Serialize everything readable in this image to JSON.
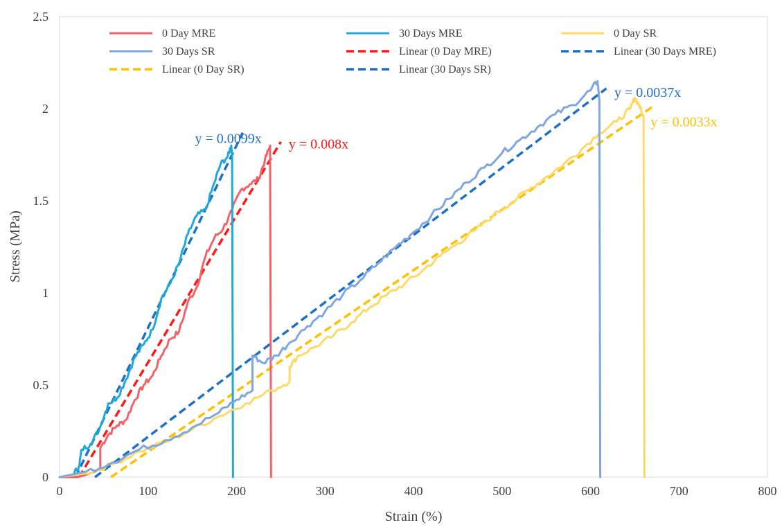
{
  "chart_data": {
    "type": "line",
    "title": "",
    "xlabel": "Strain (%)",
    "ylabel": "Stress (MPa)",
    "xlim": [
      0,
      800
    ],
    "ylim": [
      0,
      2.5
    ],
    "x_ticks": [
      "0",
      "100",
      "200",
      "300",
      "400",
      "500",
      "600",
      "700",
      "800"
    ],
    "y_ticks": [
      "0",
      "0.5",
      "1",
      "1.5",
      "2",
      "2.5"
    ],
    "grid": false,
    "legend_position": "top",
    "series": [
      {
        "name": "0 Day MRE",
        "style": "solid",
        "color": "#f0636a",
        "points": [
          [
            0,
            0
          ],
          [
            20,
            0
          ],
          [
            28,
            0.01
          ],
          [
            40,
            0.03
          ],
          [
            46,
            0.05
          ],
          [
            46,
            0.16
          ],
          [
            55,
            0.23
          ],
          [
            65,
            0.28
          ],
          [
            75,
            0.31
          ],
          [
            85,
            0.42
          ],
          [
            95,
            0.5
          ],
          [
            105,
            0.55
          ],
          [
            115,
            0.66
          ],
          [
            125,
            0.75
          ],
          [
            135,
            0.79
          ],
          [
            145,
            0.95
          ],
          [
            155,
            1.03
          ],
          [
            165,
            1.2
          ],
          [
            175,
            1.3
          ],
          [
            185,
            1.35
          ],
          [
            195,
            1.45
          ],
          [
            205,
            1.56
          ],
          [
            215,
            1.59
          ],
          [
            225,
            1.62
          ],
          [
            232,
            1.72
          ],
          [
            238,
            1.8
          ],
          [
            238,
            1.72
          ],
          [
            239,
            0
          ]
        ]
      },
      {
        "name": "30 Days MRE",
        "style": "solid",
        "color": "#1fa9d6",
        "points": [
          [
            0,
            0
          ],
          [
            15,
            0.01
          ],
          [
            22,
            0.06
          ],
          [
            25,
            0.15
          ],
          [
            35,
            0.18
          ],
          [
            45,
            0.26
          ],
          [
            55,
            0.4
          ],
          [
            65,
            0.43
          ],
          [
            75,
            0.53
          ],
          [
            85,
            0.65
          ],
          [
            95,
            0.72
          ],
          [
            105,
            0.8
          ],
          [
            115,
            0.97
          ],
          [
            125,
            1.05
          ],
          [
            135,
            1.16
          ],
          [
            145,
            1.32
          ],
          [
            155,
            1.42
          ],
          [
            165,
            1.45
          ],
          [
            175,
            1.6
          ],
          [
            182,
            1.7
          ],
          [
            190,
            1.74
          ],
          [
            194,
            1.8
          ],
          [
            195,
            1.75
          ],
          [
            196,
            0
          ]
        ]
      },
      {
        "name": "0 Day SR",
        "style": "solid",
        "color": "#ffd966",
        "points": [
          [
            0,
            0
          ],
          [
            30,
            0.02
          ],
          [
            60,
            0.07
          ],
          [
            90,
            0.14
          ],
          [
            120,
            0.19
          ],
          [
            150,
            0.26
          ],
          [
            180,
            0.33
          ],
          [
            210,
            0.4
          ],
          [
            240,
            0.47
          ],
          [
            260,
            0.52
          ],
          [
            260,
            0.6
          ],
          [
            270,
            0.66
          ],
          [
            290,
            0.71
          ],
          [
            310,
            0.77
          ],
          [
            330,
            0.84
          ],
          [
            350,
            0.92
          ],
          [
            370,
            0.99
          ],
          [
            390,
            1.05
          ],
          [
            410,
            1.12
          ],
          [
            430,
            1.2
          ],
          [
            450,
            1.27
          ],
          [
            470,
            1.34
          ],
          [
            490,
            1.42
          ],
          [
            510,
            1.49
          ],
          [
            530,
            1.56
          ],
          [
            550,
            1.63
          ],
          [
            570,
            1.7
          ],
          [
            590,
            1.78
          ],
          [
            610,
            1.87
          ],
          [
            630,
            1.93
          ],
          [
            645,
            2.0
          ],
          [
            650,
            2.06
          ],
          [
            655,
            2.02
          ],
          [
            660,
            1.95
          ],
          [
            661,
            0
          ]
        ]
      },
      {
        "name": "30 Days SR",
        "style": "solid",
        "color": "#7fa7dd",
        "points": [
          [
            0,
            0
          ],
          [
            30,
            0.03
          ],
          [
            60,
            0.08
          ],
          [
            90,
            0.15
          ],
          [
            120,
            0.2
          ],
          [
            150,
            0.27
          ],
          [
            180,
            0.35
          ],
          [
            200,
            0.42
          ],
          [
            218,
            0.47
          ],
          [
            218,
            0.66
          ],
          [
            230,
            0.62
          ],
          [
            245,
            0.66
          ],
          [
            260,
            0.73
          ],
          [
            280,
            0.82
          ],
          [
            300,
            0.9
          ],
          [
            320,
            0.99
          ],
          [
            340,
            1.07
          ],
          [
            360,
            1.16
          ],
          [
            380,
            1.25
          ],
          [
            400,
            1.33
          ],
          [
            420,
            1.42
          ],
          [
            440,
            1.51
          ],
          [
            460,
            1.6
          ],
          [
            480,
            1.68
          ],
          [
            500,
            1.76
          ],
          [
            520,
            1.83
          ],
          [
            540,
            1.9
          ],
          [
            560,
            1.97
          ],
          [
            580,
            2.02
          ],
          [
            600,
            2.1
          ],
          [
            608,
            2.15
          ],
          [
            610,
            2.05
          ],
          [
            611,
            0
          ]
        ]
      },
      {
        "name": "Linear (0 Day MRE)",
        "style": "dashed",
        "color": "#ff1a1a",
        "points": [
          [
            22,
            0
          ],
          [
            250,
            1.82
          ]
        ]
      },
      {
        "name": "Linear (30 Days MRE)",
        "style": "dashed",
        "color": "#1f6fc2",
        "points": [
          [
            18,
            0
          ],
          [
            207,
            1.87
          ]
        ]
      },
      {
        "name": "Linear (0 Day SR)",
        "style": "dashed",
        "color": "#ffc000",
        "points": [
          [
            58,
            0
          ],
          [
            670,
            2.01
          ]
        ]
      },
      {
        "name": "Linear (30 Days SR)",
        "style": "dashed",
        "color": "#1f6fc2",
        "points": [
          [
            40,
            0
          ],
          [
            618,
            2.11
          ]
        ]
      }
    ],
    "annotations": [
      {
        "text": "y = 0.0099x",
        "x": 153,
        "y": 1.84,
        "color": "#1f6fc2"
      },
      {
        "text": "y = 0.008x",
        "x": 259,
        "y": 1.81,
        "color": "#ff1a1a"
      },
      {
        "text": "y = 0.0037x",
        "x": 627,
        "y": 2.09,
        "color": "#1f6fc2"
      },
      {
        "text": "y = 0.0033x",
        "x": 668,
        "y": 1.93,
        "color": "#ffc000"
      }
    ]
  }
}
